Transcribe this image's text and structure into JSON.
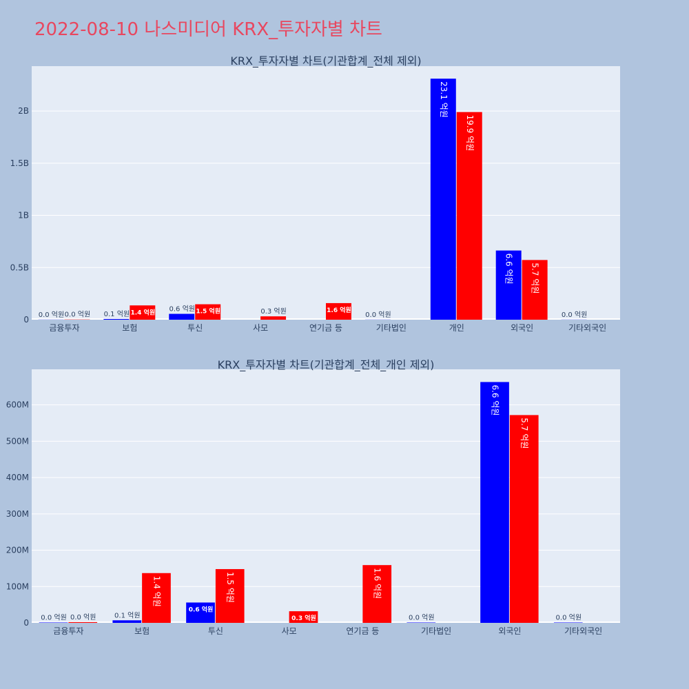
{
  "page": {
    "title": "2022-08-10 나스미디어 KRX_투자자별 차트"
  },
  "colors": {
    "buy": "#0000ff",
    "sell": "#ff0000",
    "plot_bg": "#e5ecf6",
    "page_bg": "#b0c4de",
    "title": "#e8475f",
    "text": "#2a3f5f",
    "grid": "#ffffff"
  },
  "chart_data": [
    {
      "type": "bar",
      "title": "KRX_투자자별 차트(기관합계_전체 제외)",
      "categories": [
        "금융투자",
        "보험",
        "투신",
        "사모",
        "연기금 등",
        "기타법인",
        "개인",
        "외국인",
        "기타외국인"
      ],
      "series": [
        {
          "values": [
            1000000,
            7000000,
            56000000,
            0,
            0,
            1000000,
            2310000000,
            663000000,
            1000000
          ],
          "labels": [
            "0.0 억원",
            "0.1 억원",
            "0.6 억원",
            null,
            null,
            "0.0 억원",
            "23.1 억원",
            "6.6 억원",
            "0.0 억원"
          ]
        },
        {
          "values": [
            2000000,
            137000000,
            148000000,
            32000000,
            159000000,
            0,
            1990000000,
            572000000,
            0
          ],
          "labels": [
            "0.0 억원",
            "1.4 억원",
            "1.5 억원",
            "0.3 억원",
            "1.6 억원",
            null,
            "19.9 억원",
            "5.7 억원",
            null
          ]
        }
      ],
      "ylim": [
        0,
        2430000000
      ],
      "yticks": [
        0,
        500000000,
        1000000000,
        1500000000,
        2000000000
      ],
      "ytick_labels": [
        "0",
        "0.5B",
        "1B",
        "1.5B",
        "2B"
      ],
      "grid": true
    },
    {
      "type": "bar",
      "title": "KRX_투자자별 차트(기관합계_전체_개인 제외)",
      "categories": [
        "금융투자",
        "보험",
        "투신",
        "사모",
        "연기금 등",
        "기타법인",
        "외국인",
        "기타외국인"
      ],
      "series": [
        {
          "values": [
            1000000,
            7000000,
            56000000,
            0,
            0,
            1000000,
            663000000,
            1000000
          ],
          "labels": [
            "0.0 억원",
            "0.1 억원",
            "0.6 억원",
            null,
            null,
            "0.0 억원",
            "6.6 억원",
            "0.0 억원"
          ]
        },
        {
          "values": [
            2000000,
            137000000,
            148000000,
            32000000,
            159000000,
            0,
            572000000,
            0
          ],
          "labels": [
            "0.0 억원",
            "1.4 억원",
            "1.5 억원",
            "0.3 억원",
            "1.6 억원",
            null,
            "5.7 억원",
            null
          ]
        }
      ],
      "ylim": [
        0,
        698000000
      ],
      "yticks": [
        0,
        100000000,
        200000000,
        300000000,
        400000000,
        500000000,
        600000000
      ],
      "ytick_labels": [
        "0",
        "100M",
        "200M",
        "300M",
        "400M",
        "500M",
        "600M"
      ],
      "grid": true
    }
  ]
}
